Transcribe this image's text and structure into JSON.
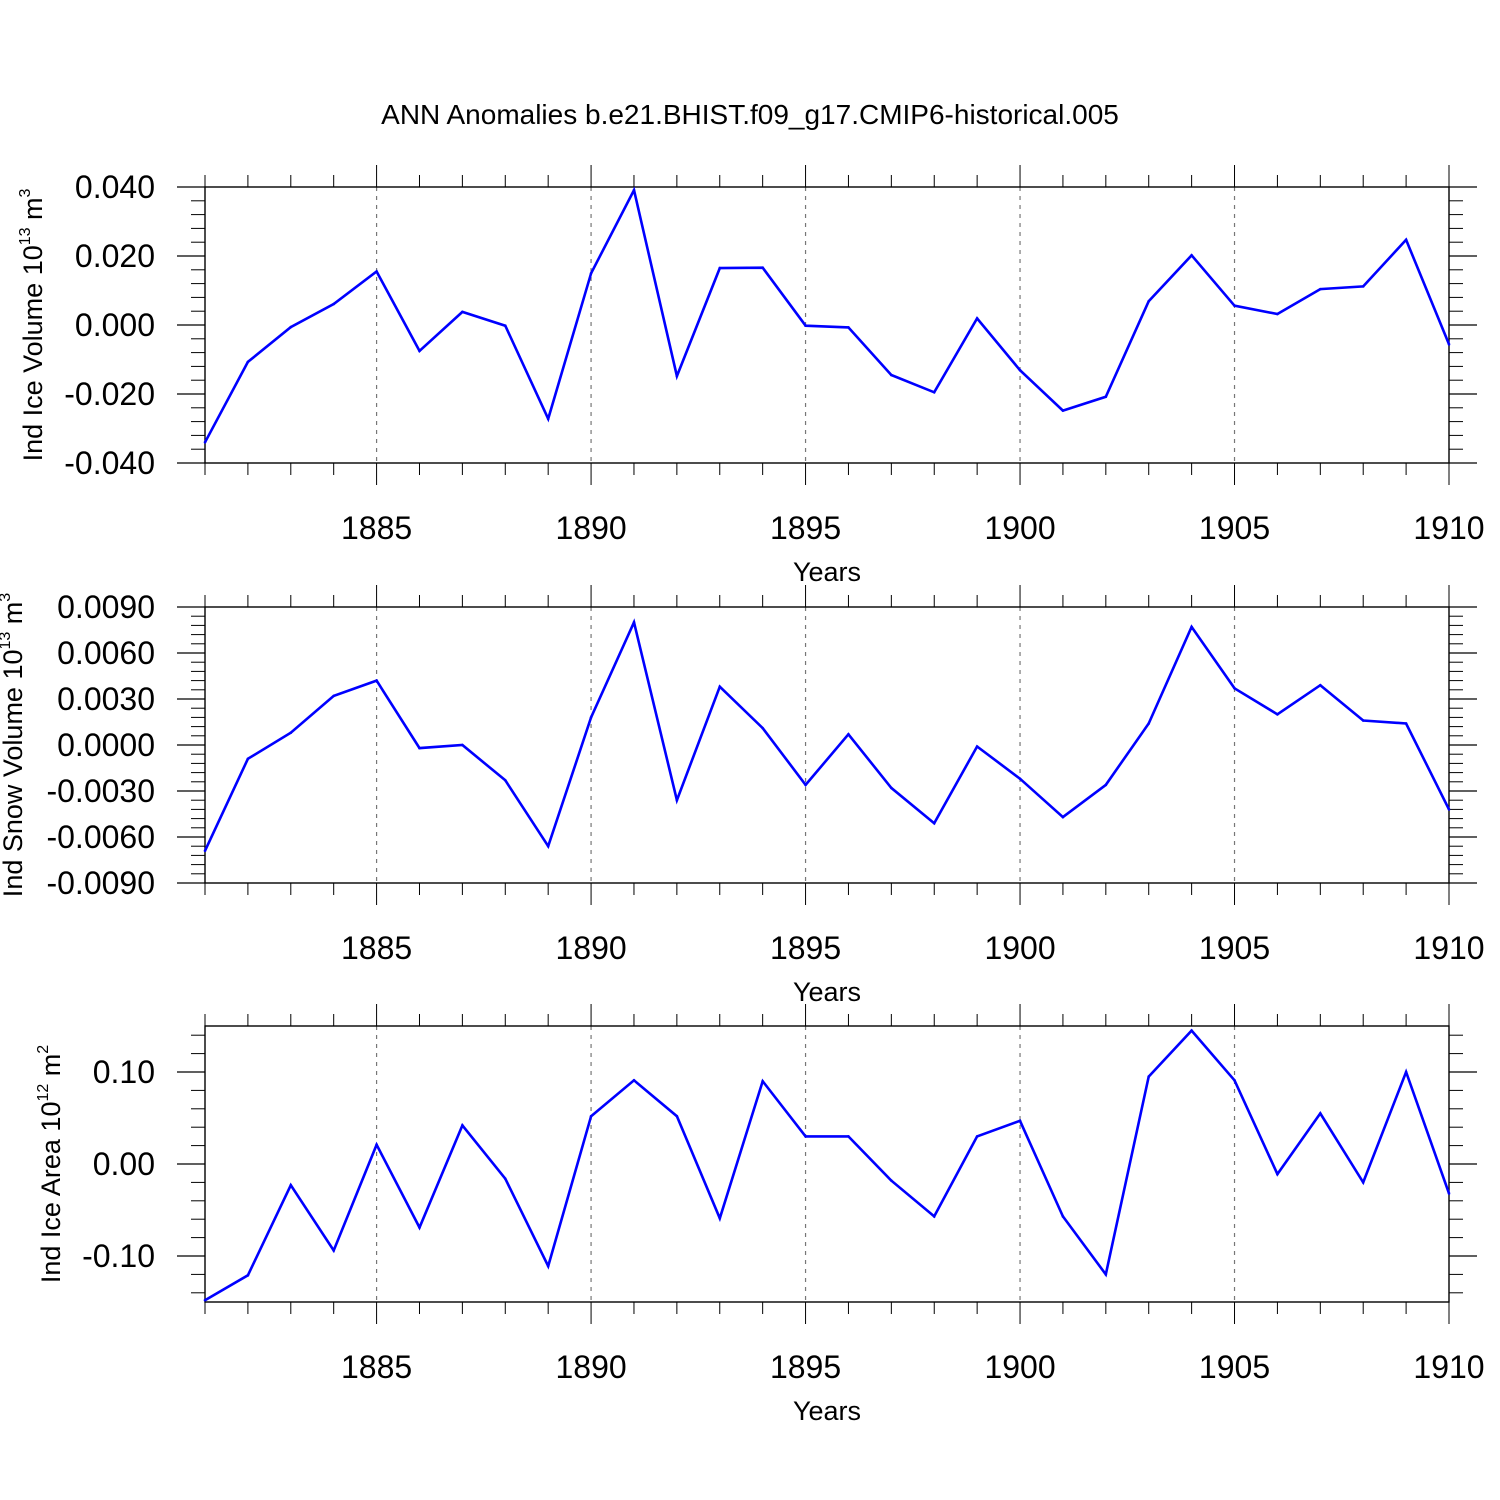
{
  "title": "ANN Anomalies b.e21.BHIST.f09_g17.CMIP6-historical.005",
  "line_color": "#0000ff",
  "chart_data": [
    {
      "type": "line",
      "ylabel": {
        "base": "Ind Ice Volume 10",
        "exp1": "13",
        "mid": " m",
        "exp2": "3"
      },
      "xlabel": "Years",
      "xlim": [
        1881,
        1910
      ],
      "ylim": [
        -0.04,
        0.04
      ],
      "grid_x": true,
      "xticks": [
        {
          "value": 1885,
          "label": "1885"
        },
        {
          "value": 1890,
          "label": "1890"
        },
        {
          "value": 1895,
          "label": "1895"
        },
        {
          "value": 1900,
          "label": "1900"
        },
        {
          "value": 1905,
          "label": "1905"
        },
        {
          "value": 1910,
          "label": "1910"
        }
      ],
      "yticks": [
        {
          "value": 0.04,
          "label": "0.040"
        },
        {
          "value": 0.02,
          "label": "0.020"
        },
        {
          "value": 0.0,
          "label": "0.000"
        },
        {
          "value": -0.02,
          "label": "-0.020"
        },
        {
          "value": -0.04,
          "label": "-0.040"
        }
      ],
      "x": [
        1881,
        1882,
        1883,
        1884,
        1885,
        1886,
        1887,
        1888,
        1889,
        1890,
        1891,
        1892,
        1893,
        1894,
        1895,
        1896,
        1897,
        1898,
        1899,
        1900,
        1901,
        1902,
        1903,
        1904,
        1905,
        1906,
        1907,
        1908,
        1909,
        1910
      ],
      "values": [
        -0.034,
        -0.0107,
        -0.0006,
        0.0061,
        0.0155,
        -0.0075,
        0.0038,
        -0.0002,
        -0.0272,
        0.015,
        0.0391,
        -0.0148,
        0.0165,
        0.0166,
        -0.0002,
        -0.0007,
        -0.0145,
        -0.0195,
        0.0019,
        -0.0131,
        -0.0248,
        -0.0208,
        0.0069,
        0.0202,
        0.0056,
        0.0032,
        0.0104,
        0.0112,
        0.0247,
        -0.0056
      ]
    },
    {
      "type": "line",
      "ylabel": {
        "base": "Ind Snow Volume 10",
        "exp1": "13",
        "mid": " m",
        "exp2": "3"
      },
      "xlabel": "Years",
      "xlim": [
        1881,
        1910
      ],
      "ylim": [
        -0.009,
        0.009
      ],
      "grid_x": true,
      "xticks": [
        {
          "value": 1885,
          "label": "1885"
        },
        {
          "value": 1890,
          "label": "1890"
        },
        {
          "value": 1895,
          "label": "1895"
        },
        {
          "value": 1900,
          "label": "1900"
        },
        {
          "value": 1905,
          "label": "1905"
        },
        {
          "value": 1910,
          "label": "1910"
        }
      ],
      "yticks": [
        {
          "value": 0.009,
          "label": "0.0090"
        },
        {
          "value": 0.006,
          "label": "0.0060"
        },
        {
          "value": 0.003,
          "label": "0.0030"
        },
        {
          "value": 0.0,
          "label": "0.0000"
        },
        {
          "value": -0.003,
          "label": "-0.0030"
        },
        {
          "value": -0.006,
          "label": "-0.0060"
        },
        {
          "value": -0.009,
          "label": "-0.0090"
        }
      ],
      "x": [
        1881,
        1882,
        1883,
        1884,
        1885,
        1886,
        1887,
        1888,
        1889,
        1890,
        1891,
        1892,
        1893,
        1894,
        1895,
        1896,
        1897,
        1898,
        1899,
        1900,
        1901,
        1902,
        1903,
        1904,
        1905,
        1906,
        1907,
        1908,
        1909,
        1910
      ],
      "values": [
        -0.0069,
        -0.0009,
        0.0008,
        0.0032,
        0.0042,
        -0.0002,
        0.0,
        -0.0023,
        -0.0066,
        0.0018,
        0.008,
        -0.0036,
        0.0038,
        0.0011,
        -0.0026,
        0.0007,
        -0.0028,
        -0.0051,
        -0.0001,
        -0.0022,
        -0.0047,
        -0.0026,
        0.0014,
        0.0077,
        0.0037,
        0.002,
        0.0039,
        0.0016,
        0.0014,
        -0.0042
      ]
    },
    {
      "type": "line",
      "ylabel": {
        "base": "Ind Ice Area 10",
        "exp1": "12",
        "mid": " m",
        "exp2": "2"
      },
      "xlabel": "Years",
      "xlim": [
        1881,
        1910
      ],
      "ylim": [
        -0.15,
        0.15
      ],
      "grid_x": true,
      "xticks": [
        {
          "value": 1885,
          "label": "1885"
        },
        {
          "value": 1890,
          "label": "1890"
        },
        {
          "value": 1895,
          "label": "1895"
        },
        {
          "value": 1900,
          "label": "1900"
        },
        {
          "value": 1905,
          "label": "1905"
        },
        {
          "value": 1910,
          "label": "1910"
        }
      ],
      "yticks": [
        {
          "value": 0.1,
          "label": "0.10"
        },
        {
          "value": 0.0,
          "label": "0.00"
        },
        {
          "value": -0.1,
          "label": "-0.10"
        }
      ],
      "x": [
        1881,
        1882,
        1883,
        1884,
        1885,
        1886,
        1887,
        1888,
        1889,
        1890,
        1891,
        1892,
        1893,
        1894,
        1895,
        1896,
        1897,
        1898,
        1899,
        1900,
        1901,
        1902,
        1903,
        1904,
        1905,
        1906,
        1907,
        1908,
        1909,
        1910
      ],
      "values": [
        -0.148,
        -0.121,
        -0.023,
        -0.094,
        0.021,
        -0.069,
        0.042,
        -0.016,
        -0.111,
        0.052,
        0.091,
        0.052,
        -0.059,
        0.09,
        0.03,
        0.03,
        -0.018,
        -0.057,
        0.03,
        0.047,
        -0.057,
        -0.12,
        0.095,
        0.145,
        0.091,
        -0.011,
        0.055,
        -0.02,
        0.1,
        -0.032
      ]
    }
  ]
}
